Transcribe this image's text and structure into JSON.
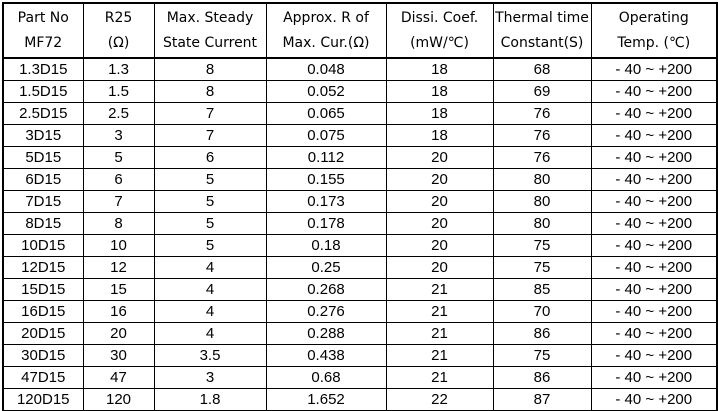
{
  "table": {
    "title": "MF72 thermistor specification table",
    "text_color": "#000000",
    "border_color": "#000000",
    "background_color": "#ffffff",
    "columns": [
      {
        "key": "part-no",
        "line1": "Part No",
        "line2": "MF72"
      },
      {
        "key": "r25",
        "line1": "R25",
        "line2": "(Ω)"
      },
      {
        "key": "max-steady-current",
        "line1": "Max. Steady",
        "line2": "State Current"
      },
      {
        "key": "approx-r-max-cur",
        "line1": "Approx. R of",
        "line2": "Max. Cur.(Ω)"
      },
      {
        "key": "dissi-coef",
        "line1": "Dissi. Coef.",
        "line2": "(mW/℃)"
      },
      {
        "key": "thermal-time-constant",
        "line1": "Thermal time",
        "line2": "Constant(S)"
      },
      {
        "key": "operating-temp",
        "line1": "Operating",
        "line2": "Temp. (℃)"
      }
    ],
    "rows": [
      [
        "1.3D15",
        "1.3",
        "8",
        "0.048",
        "18",
        "68",
        "- 40 ~ +200"
      ],
      [
        "1.5D15",
        "1.5",
        "8",
        "0.052",
        "18",
        "69",
        "- 40 ~ +200"
      ],
      [
        "2.5D15",
        "2.5",
        "7",
        "0.065",
        "18",
        "76",
        "- 40 ~ +200"
      ],
      [
        "3D15",
        "3",
        "7",
        "0.075",
        "18",
        "76",
        "- 40 ~ +200"
      ],
      [
        "5D15",
        "5",
        "6",
        "0.112",
        "20",
        "76",
        "- 40 ~ +200"
      ],
      [
        "6D15",
        "6",
        "5",
        "0.155",
        "20",
        "80",
        "- 40 ~ +200"
      ],
      [
        "7D15",
        "7",
        "5",
        "0.173",
        "20",
        "80",
        "- 40 ~ +200"
      ],
      [
        "8D15",
        "8",
        "5",
        "0.178",
        "20",
        "80",
        "- 40 ~ +200"
      ],
      [
        "10D15",
        "10",
        "5",
        "0.18",
        "20",
        "75",
        "- 40 ~ +200"
      ],
      [
        "12D15",
        "12",
        "4",
        "0.25",
        "20",
        "75",
        "- 40 ~ +200"
      ],
      [
        "15D15",
        "15",
        "4",
        "0.268",
        "21",
        "85",
        "- 40 ~ +200"
      ],
      [
        "16D15",
        "16",
        "4",
        "0.276",
        "21",
        "70",
        "- 40 ~ +200"
      ],
      [
        "20D15",
        "20",
        "4",
        "0.288",
        "21",
        "86",
        "- 40 ~ +200"
      ],
      [
        "30D15",
        "30",
        "3.5",
        "0.438",
        "21",
        "75",
        "- 40 ~ +200"
      ],
      [
        "47D15",
        "47",
        "3",
        "0.68",
        "21",
        "86",
        "- 40 ~ +200"
      ],
      [
        "120D15",
        "120",
        "1.8",
        "1.652",
        "22",
        "87",
        "- 40 ~ +200"
      ]
    ]
  }
}
